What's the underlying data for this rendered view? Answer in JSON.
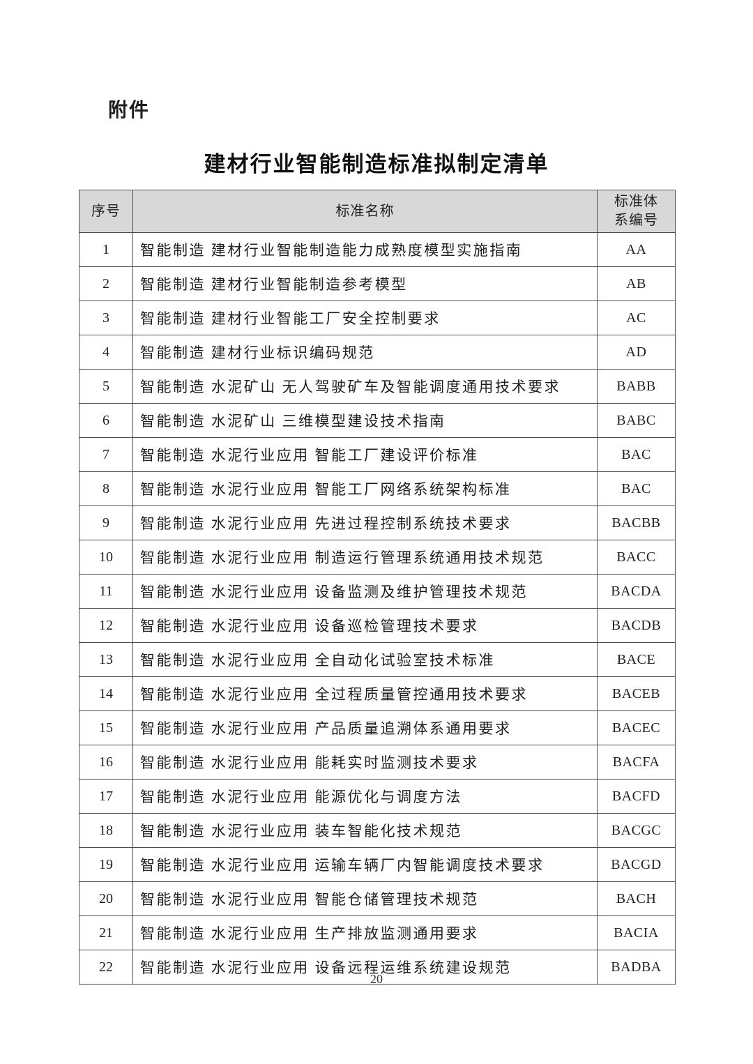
{
  "page": {
    "attachment_label": "附件",
    "title": "建材行业智能制造标准拟制定清单",
    "page_number": "20"
  },
  "table": {
    "headers": {
      "index": "序号",
      "name": "标准名称",
      "code": "标准体系编号"
    },
    "rows": [
      {
        "no": "1",
        "name": "智能制造 建材行业智能制造能力成熟度模型实施指南",
        "code": "AA"
      },
      {
        "no": "2",
        "name": "智能制造 建材行业智能制造参考模型",
        "code": "AB"
      },
      {
        "no": "3",
        "name": "智能制造 建材行业智能工厂安全控制要求",
        "code": "AC"
      },
      {
        "no": "4",
        "name": "智能制造 建材行业标识编码规范",
        "code": "AD"
      },
      {
        "no": "5",
        "name": "智能制造 水泥矿山 无人驾驶矿车及智能调度通用技术要求",
        "code": "BABB"
      },
      {
        "no": "6",
        "name": "智能制造 水泥矿山 三维模型建设技术指南",
        "code": "BABC"
      },
      {
        "no": "7",
        "name": "智能制造 水泥行业应用 智能工厂建设评价标准",
        "code": "BAC"
      },
      {
        "no": "8",
        "name": "智能制造 水泥行业应用 智能工厂网络系统架构标准",
        "code": "BAC"
      },
      {
        "no": "9",
        "name": "智能制造 水泥行业应用 先进过程控制系统技术要求",
        "code": "BACBB"
      },
      {
        "no": "10",
        "name": "智能制造 水泥行业应用 制造运行管理系统通用技术规范",
        "code": "BACC"
      },
      {
        "no": "11",
        "name": "智能制造 水泥行业应用 设备监测及维护管理技术规范",
        "code": "BACDA"
      },
      {
        "no": "12",
        "name": "智能制造 水泥行业应用 设备巡检管理技术要求",
        "code": "BACDB"
      },
      {
        "no": "13",
        "name": "智能制造 水泥行业应用 全自动化试验室技术标准",
        "code": "BACE"
      },
      {
        "no": "14",
        "name": "智能制造 水泥行业应用 全过程质量管控通用技术要求",
        "code": "BACEB"
      },
      {
        "no": "15",
        "name": "智能制造 水泥行业应用 产品质量追溯体系通用要求",
        "code": "BACEC"
      },
      {
        "no": "16",
        "name": "智能制造 水泥行业应用 能耗实时监测技术要求",
        "code": "BACFA"
      },
      {
        "no": "17",
        "name": "智能制造 水泥行业应用 能源优化与调度方法",
        "code": "BACFD"
      },
      {
        "no": "18",
        "name": "智能制造 水泥行业应用 装车智能化技术规范",
        "code": "BACGC"
      },
      {
        "no": "19",
        "name": "智能制造 水泥行业应用 运输车辆厂内智能调度技术要求",
        "code": "BACGD"
      },
      {
        "no": "20",
        "name": "智能制造 水泥行业应用 智能仓储管理技术规范",
        "code": "BACH"
      },
      {
        "no": "21",
        "name": "智能制造 水泥行业应用 生产排放监测通用要求",
        "code": "BACIA"
      },
      {
        "no": "22",
        "name": "智能制造 水泥行业应用 设备远程运维系统建设规范",
        "code": "BADBA"
      }
    ]
  },
  "colors": {
    "header_background": "#d8d8d8",
    "table_border": "#4d4d4d",
    "text": "#1c1c1c"
  }
}
